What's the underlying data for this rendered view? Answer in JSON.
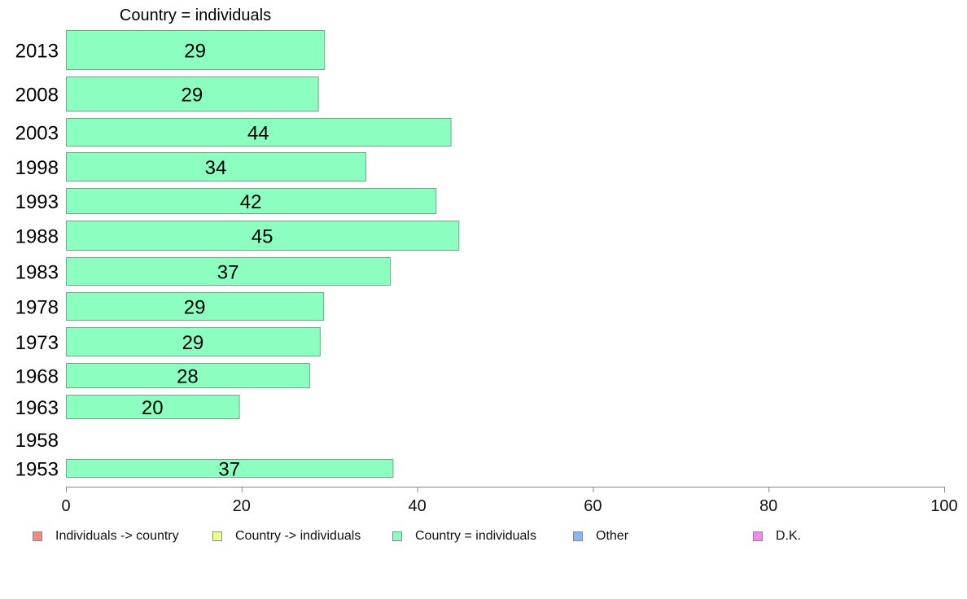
{
  "chart_data": {
    "type": "bar",
    "orientation": "horizontal",
    "title": "Country = individuals",
    "categories": [
      "2013",
      "2008",
      "2003",
      "1998",
      "1993",
      "1988",
      "1983",
      "1978",
      "1973",
      "1968",
      "1963",
      "1958",
      "1953"
    ],
    "values": [
      29.4,
      28.7,
      43.8,
      34.1,
      42.1,
      44.7,
      36.9,
      29.3,
      28.9,
      27.7,
      19.7,
      null,
      37.2
    ],
    "value_labels": [
      "29",
      "29",
      "44",
      "34",
      "42",
      "45",
      "37",
      "29",
      "29",
      "28",
      "20",
      "",
      "37"
    ],
    "x_ticks": [
      "0",
      "20",
      "40",
      "60",
      "80",
      "100"
    ],
    "xlim": [
      0,
      100
    ],
    "bar_color": "#8cffc0",
    "bar_border_color": "#6fa888",
    "grid": false,
    "legend_position": "bottom",
    "legend": [
      {
        "label": "Individuals -> country",
        "color": "#f08c84"
      },
      {
        "label": "Country -> individuals",
        "color": "#eeff8a"
      },
      {
        "label": "Country = individuals",
        "color": "#8cffc0"
      },
      {
        "label": "Other",
        "color": "#88b8f4"
      },
      {
        "label": "D.K.",
        "color": "#ee88f4"
      }
    ]
  }
}
